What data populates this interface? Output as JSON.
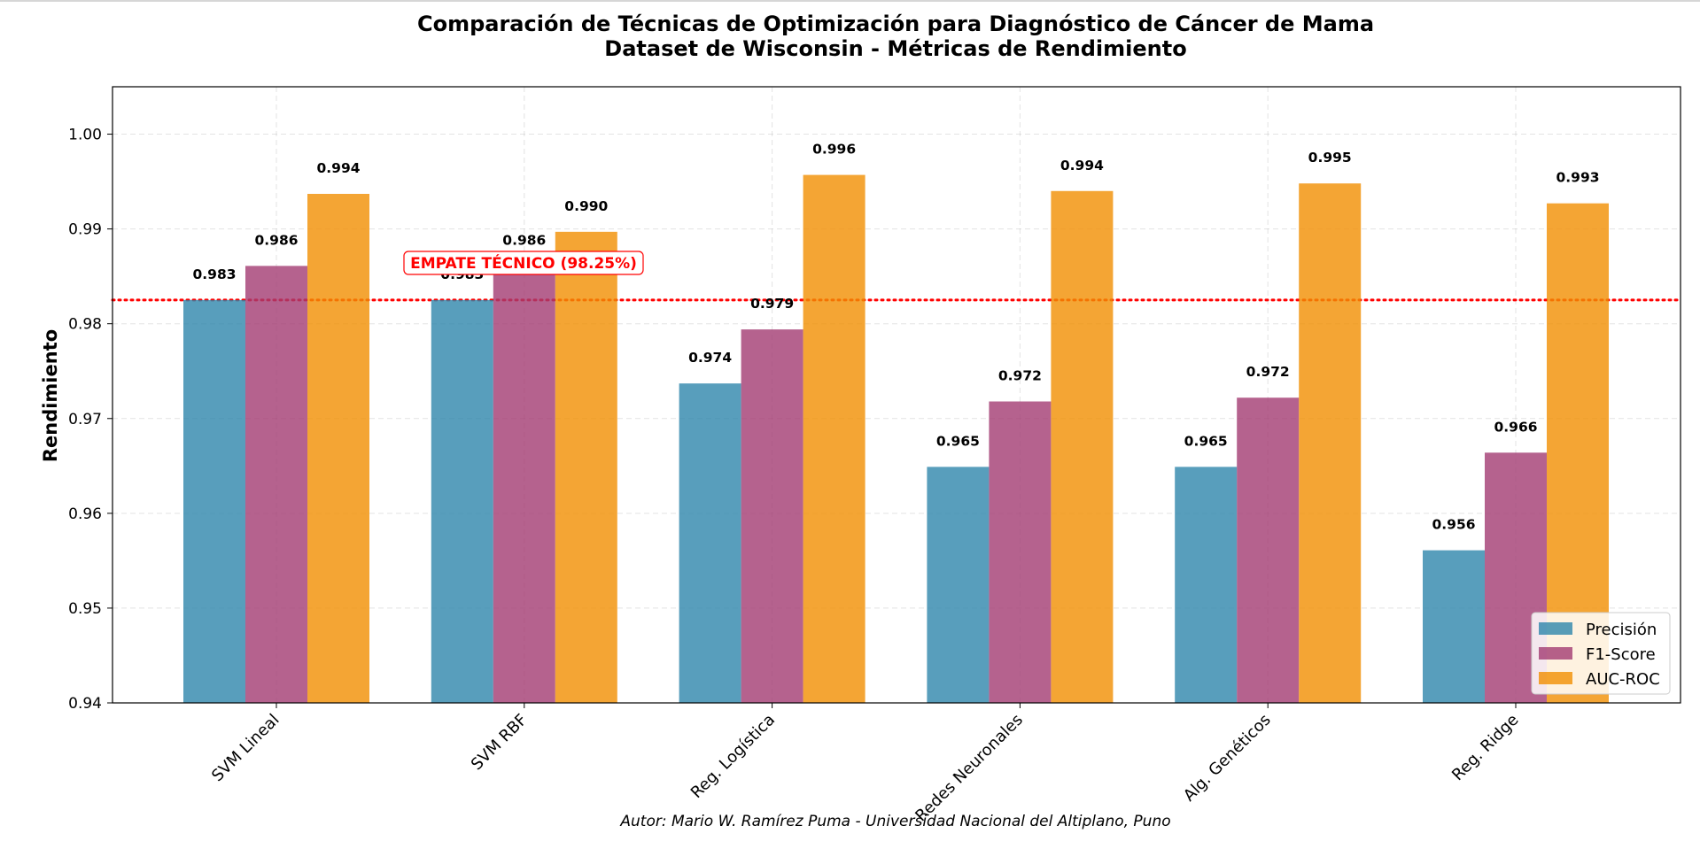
{
  "chart_data": {
    "type": "bar",
    "title": "Comparación de Técnicas de Optimización para Diagnóstico de Cáncer de Mama",
    "subtitle": "Dataset de Wisconsin - Métricas de Rendimiento",
    "xlabel": "",
    "ylabel": "Rendimiento",
    "ylim": [
      0.94,
      1.005
    ],
    "yticks": [
      "0.94",
      "0.95",
      "0.96",
      "0.97",
      "0.98",
      "0.99",
      "1.00"
    ],
    "categories": [
      "SVM Lineal",
      "SVM RBF",
      "Reg. Logística",
      "Redes Neuronales",
      "Alg. Genéticos",
      "Reg. Ridge"
    ],
    "series": [
      {
        "name": "Precisión",
        "color": "#2e86ab",
        "values": [
          0.9825,
          0.9825,
          0.9737,
          0.9649,
          0.9649,
          0.9561
        ],
        "labels": [
          "0.983",
          "0.983",
          "0.974",
          "0.965",
          "0.965",
          "0.956"
        ]
      },
      {
        "name": "F1-Score",
        "color": "#a23b72",
        "values": [
          0.9861,
          0.9861,
          0.9794,
          0.9718,
          0.9722,
          0.9664
        ],
        "labels": [
          "0.986",
          "0.986",
          "0.979",
          "0.972",
          "0.972",
          "0.966"
        ]
      },
      {
        "name": "AUC-ROC",
        "color": "#f18f01",
        "values": [
          0.9937,
          0.9897,
          0.9957,
          0.994,
          0.9948,
          0.9927
        ],
        "labels": [
          "0.994",
          "0.990",
          "0.996",
          "0.994",
          "0.995",
          "0.993"
        ]
      }
    ],
    "reference_line": {
      "value": 0.9825,
      "color": "#ff0000",
      "style": "dotted"
    },
    "annotation": {
      "text": "EMPATE TÉCNICO (98.25%)",
      "category": "SVM RBF",
      "value": 0.986,
      "color": "#ff0000"
    },
    "grid": true,
    "legend_position": "lower-right"
  },
  "footer": {
    "text": "Autor: Mario W. Ramírez Puma - Universidad Nacional del Altiplano, Puno"
  }
}
